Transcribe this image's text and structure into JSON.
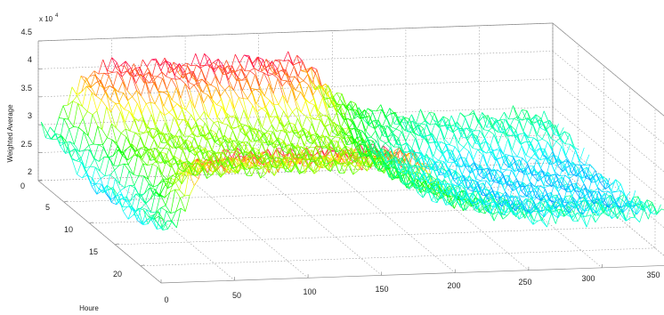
{
  "chart_data": {
    "type": "surface-mesh",
    "title": "",
    "xlabel": "",
    "ylabel": "Houre",
    "zlabel": "Weighted Average",
    "z_exponent_label": "x 10",
    "z_exponent_power": "4",
    "xlim": [
      0,
      350
    ],
    "ylim": [
      0,
      24
    ],
    "zlim": [
      2,
      4.5
    ],
    "x_ticks": [
      "0",
      "50",
      "100",
      "150",
      "200",
      "250",
      "300",
      "350"
    ],
    "y_ticks": [
      "0",
      "5",
      "10",
      "15",
      "20"
    ],
    "z_ticks": [
      "2",
      "2.5",
      "3",
      "3.5",
      "4",
      "4.5"
    ],
    "grid": true,
    "colormap": [
      "#0000ff",
      "#00ffff",
      "#00ff00",
      "#ffff00",
      "#ff0000"
    ],
    "profile_x": [
      0,
      10,
      20,
      30,
      40,
      50,
      60,
      70,
      80,
      90,
      100,
      110,
      120,
      130,
      140,
      150,
      160,
      170,
      180,
      190,
      200,
      210,
      220,
      230,
      240,
      250,
      260,
      270,
      280,
      290,
      300,
      310,
      320,
      330,
      340,
      350
    ],
    "profile_values": [
      3.05,
      2.85,
      3.35,
      3.85,
      3.95,
      3.98,
      4.0,
      4.0,
      4.0,
      4.0,
      4.0,
      4.0,
      4.0,
      4.0,
      4.0,
      4.0,
      4.0,
      3.98,
      3.9,
      3.5,
      3.3,
      3.15,
      3.05,
      3.0,
      2.95,
      2.9,
      2.85,
      2.85,
      2.85,
      2.85,
      2.85,
      2.85,
      2.85,
      2.85,
      2.85,
      2.85
    ],
    "hourly_dip": [
      0.0,
      0.0,
      0.0,
      0.05,
      0.15,
      0.3,
      0.45,
      0.55,
      0.6,
      0.6,
      0.6,
      0.6,
      0.6,
      0.6,
      0.6,
      0.6,
      0.6,
      0.55,
      0.45,
      0.3,
      0.15,
      0.05,
      0.0,
      0.0
    ]
  }
}
